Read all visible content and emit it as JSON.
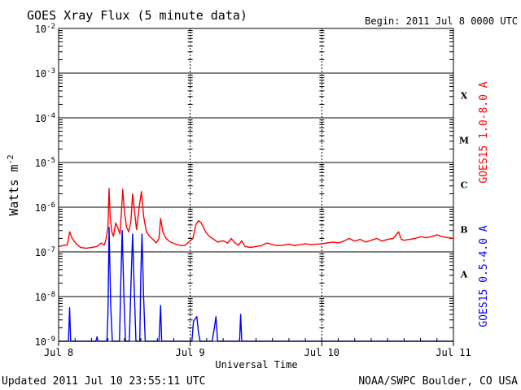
{
  "chart_data": {
    "type": "line",
    "title": "GOES Xray Flux (5 minute data)",
    "begin_label": "Begin:  2011 Jul 8 0000 UTC",
    "ylabel_main": "Watts m",
    "ylabel_sup": "-2",
    "xlabel": "Universal Time",
    "y_scale": "log",
    "ylim": [
      1e-09,
      0.01
    ],
    "xlim": [
      0,
      72
    ],
    "x_ticks": [
      {
        "x": 0,
        "label": "Jul 8"
      },
      {
        "x": 24,
        "label": "Jul 9"
      },
      {
        "x": 48,
        "label": "Jul 10"
      },
      {
        "x": 72,
        "label": "Jul 11"
      }
    ],
    "y_ticks": [
      {
        "exp": -2,
        "base": "10",
        "sup": "-2"
      },
      {
        "exp": -3,
        "base": "10",
        "sup": "-3"
      },
      {
        "exp": -4,
        "base": "10",
        "sup": "-4"
      },
      {
        "exp": -5,
        "base": "10",
        "sup": "-5"
      },
      {
        "exp": -6,
        "base": "10",
        "sup": "-6"
      },
      {
        "exp": -7,
        "base": "10",
        "sup": "-7"
      },
      {
        "exp": -8,
        "base": "10",
        "sup": "-8"
      },
      {
        "exp": -9,
        "base": "10",
        "sup": "-9"
      }
    ],
    "flare_classes": [
      {
        "label": "X",
        "exp": -3.5
      },
      {
        "label": "M",
        "exp": -4.5
      },
      {
        "label": "C",
        "exp": -5.5
      },
      {
        "label": "B",
        "exp": -6.5
      },
      {
        "label": "A",
        "exp": -7.5
      }
    ],
    "grid": true,
    "series": [
      {
        "name": "GOES15 1.0-8.0 A",
        "color": "#ff0000",
        "points": [
          [
            0,
            -6.88
          ],
          [
            0.8,
            -6.86
          ],
          [
            1.6,
            -6.84
          ],
          [
            2.0,
            -6.55
          ],
          [
            2.5,
            -6.7
          ],
          [
            3.2,
            -6.82
          ],
          [
            4.0,
            -6.9
          ],
          [
            5.0,
            -6.92
          ],
          [
            6.0,
            -6.9
          ],
          [
            7.0,
            -6.88
          ],
          [
            7.8,
            -6.8
          ],
          [
            8.3,
            -6.85
          ],
          [
            8.6,
            -6.75
          ],
          [
            9.0,
            -6.45
          ],
          [
            9.2,
            -5.58
          ],
          [
            9.4,
            -6.2
          ],
          [
            9.7,
            -6.55
          ],
          [
            10.0,
            -6.65
          ],
          [
            10.4,
            -6.35
          ],
          [
            10.9,
            -6.5
          ],
          [
            11.2,
            -6.6
          ],
          [
            11.5,
            -6.0
          ],
          [
            11.7,
            -5.6
          ],
          [
            12.0,
            -6.1
          ],
          [
            12.4,
            -6.45
          ],
          [
            12.8,
            -6.55
          ],
          [
            13.2,
            -6.3
          ],
          [
            13.5,
            -5.7
          ],
          [
            13.8,
            -6.05
          ],
          [
            14.2,
            -6.5
          ],
          [
            14.7,
            -6.0
          ],
          [
            15.1,
            -5.65
          ],
          [
            15.5,
            -6.2
          ],
          [
            16.0,
            -6.55
          ],
          [
            16.6,
            -6.65
          ],
          [
            17.2,
            -6.72
          ],
          [
            17.8,
            -6.8
          ],
          [
            18.3,
            -6.7
          ],
          [
            18.6,
            -6.25
          ],
          [
            19.0,
            -6.55
          ],
          [
            19.6,
            -6.7
          ],
          [
            20.4,
            -6.78
          ],
          [
            21.2,
            -6.82
          ],
          [
            22.0,
            -6.85
          ],
          [
            23.0,
            -6.86
          ],
          [
            24.5,
            -6.7
          ],
          [
            25.0,
            -6.4
          ],
          [
            25.5,
            -6.3
          ],
          [
            26.0,
            -6.35
          ],
          [
            26.8,
            -6.55
          ],
          [
            27.5,
            -6.65
          ],
          [
            28.3,
            -6.72
          ],
          [
            29.0,
            -6.78
          ],
          [
            30.0,
            -6.75
          ],
          [
            30.8,
            -6.8
          ],
          [
            31.5,
            -6.7
          ],
          [
            32.0,
            -6.78
          ],
          [
            32.8,
            -6.85
          ],
          [
            33.4,
            -6.75
          ],
          [
            34.0,
            -6.88
          ],
          [
            35.0,
            -6.9
          ],
          [
            36.0,
            -6.88
          ],
          [
            37.0,
            -6.86
          ],
          [
            38.0,
            -6.8
          ],
          [
            39.0,
            -6.84
          ],
          [
            40.0,
            -6.86
          ],
          [
            41.0,
            -6.85
          ],
          [
            42.0,
            -6.83
          ],
          [
            43.0,
            -6.86
          ],
          [
            44.0,
            -6.84
          ],
          [
            45.0,
            -6.82
          ],
          [
            46.0,
            -6.84
          ],
          [
            47.0,
            -6.83
          ],
          [
            48.0,
            -6.82
          ],
          [
            49.0,
            -6.8
          ],
          [
            50.0,
            -6.78
          ],
          [
            51.0,
            -6.8
          ],
          [
            52.0,
            -6.76
          ],
          [
            53.0,
            -6.7
          ],
          [
            54.0,
            -6.76
          ],
          [
            55.0,
            -6.72
          ],
          [
            56.0,
            -6.78
          ],
          [
            57.0,
            -6.74
          ],
          [
            58.0,
            -6.7
          ],
          [
            59.0,
            -6.76
          ],
          [
            60.0,
            -6.72
          ],
          [
            61.0,
            -6.7
          ],
          [
            62.0,
            -6.55
          ],
          [
            62.5,
            -6.72
          ],
          [
            63.0,
            -6.74
          ],
          [
            64.0,
            -6.72
          ],
          [
            65.0,
            -6.7
          ],
          [
            66.0,
            -6.66
          ],
          [
            67.0,
            -6.68
          ],
          [
            68.0,
            -6.66
          ],
          [
            69.0,
            -6.62
          ],
          [
            70.0,
            -6.66
          ],
          [
            71.0,
            -6.68
          ],
          [
            72.0,
            -6.7
          ]
        ]
      },
      {
        "name": "GOES15 0.5-4.0 A",
        "color": "#0000ff",
        "points": [
          [
            0,
            -9.0
          ],
          [
            1.8,
            -9.0
          ],
          [
            2.0,
            -8.25
          ],
          [
            2.2,
            -9.0
          ],
          [
            6.8,
            -9.0
          ],
          [
            7.0,
            -8.9
          ],
          [
            7.2,
            -9.0
          ],
          [
            8.8,
            -9.0
          ],
          [
            9.0,
            -8.4
          ],
          [
            9.2,
            -6.45
          ],
          [
            9.5,
            -8.2
          ],
          [
            9.8,
            -9.0
          ],
          [
            11.1,
            -9.0
          ],
          [
            11.3,
            -7.9
          ],
          [
            11.6,
            -6.52
          ],
          [
            11.9,
            -8.0
          ],
          [
            12.2,
            -9.0
          ],
          [
            12.9,
            -9.0
          ],
          [
            13.2,
            -7.7
          ],
          [
            13.5,
            -6.6
          ],
          [
            13.8,
            -7.9
          ],
          [
            14.1,
            -9.0
          ],
          [
            14.8,
            -9.0
          ],
          [
            15.0,
            -7.5
          ],
          [
            15.2,
            -6.6
          ],
          [
            15.5,
            -8.0
          ],
          [
            15.8,
            -9.0
          ],
          [
            18.3,
            -9.0
          ],
          [
            18.6,
            -8.2
          ],
          [
            18.8,
            -9.0
          ],
          [
            24.3,
            -9.0
          ],
          [
            24.6,
            -8.55
          ],
          [
            24.9,
            -8.5
          ],
          [
            25.2,
            -8.45
          ],
          [
            25.5,
            -8.8
          ],
          [
            25.8,
            -9.0
          ],
          [
            28.0,
            -9.0
          ],
          [
            28.4,
            -8.7
          ],
          [
            28.7,
            -8.45
          ],
          [
            29.0,
            -9.0
          ],
          [
            33.0,
            -9.0
          ],
          [
            33.2,
            -8.4
          ],
          [
            33.4,
            -9.0
          ],
          [
            72,
            -9.0
          ]
        ]
      }
    ],
    "right_labels": [
      {
        "text": "GOES15 1.0-8.0 A",
        "color": "#ff0000"
      },
      {
        "text": "GOES15 0.5-4.0 A",
        "color": "#0000ff"
      }
    ]
  },
  "footer": {
    "updated": "Updated 2011 Jul 10 23:55:11 UTC",
    "credit": "NOAA/SWPC Boulder, CO USA"
  }
}
